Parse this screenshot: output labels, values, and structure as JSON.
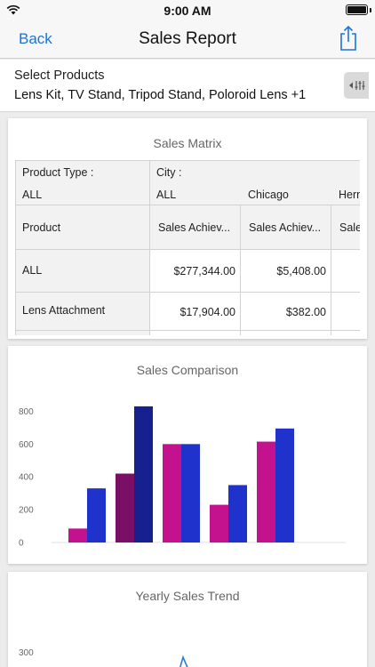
{
  "status": {
    "time": "9:00 AM"
  },
  "nav": {
    "back_label": "Back",
    "title": "Sales Report"
  },
  "filter": {
    "label": "Select Products",
    "value": "Lens Kit, TV Stand, Tripod Stand, Poloroid Lens +1"
  },
  "matrix": {
    "title": "Sales Matrix",
    "product_type_label": "Product Type :",
    "product_type_value": "ALL",
    "city_label": "City :",
    "cities": [
      "ALL",
      "Chicago",
      "Hern"
    ],
    "row_header": "Product",
    "measure_headers": [
      "Sales Achiev...",
      "Sales Achiev...",
      "Sale"
    ],
    "rows": [
      {
        "product": "ALL",
        "values": [
          "$277,344.00",
          "$5,408.00"
        ]
      },
      {
        "product": "Lens Attachment",
        "values": [
          "$17,904.00",
          "$382.00"
        ]
      }
    ]
  },
  "comparison": {
    "title": "Sales Comparison",
    "chart_data": {
      "type": "bar",
      "ylim": [
        0,
        900
      ],
      "yticks": [
        0,
        200,
        400,
        600,
        800
      ],
      "groups": [
        {
          "bars": [
            {
              "value": 85,
              "color": "#c4128e"
            },
            {
              "value": 330,
              "color": "#1f33cc"
            }
          ]
        },
        {
          "bars": [
            {
              "value": 420,
              "color": "#7a0f66"
            },
            {
              "value": 830,
              "color": "#16208e"
            }
          ]
        },
        {
          "bars": [
            {
              "value": 600,
              "color": "#c4128e"
            },
            {
              "value": 600,
              "color": "#1f33cc"
            }
          ]
        },
        {
          "bars": [
            {
              "value": 230,
              "color": "#c4128e"
            },
            {
              "value": 350,
              "color": "#1f33cc"
            }
          ]
        },
        {
          "bars": [
            {
              "value": 615,
              "color": "#c4128e"
            },
            {
              "value": 695,
              "color": "#1f33cc"
            }
          ]
        }
      ]
    }
  },
  "trend": {
    "title": "Yearly Sales Trend",
    "chart_data": {
      "type": "line",
      "yticks_visible": [
        300
      ],
      "color": "#2a7be0"
    }
  }
}
